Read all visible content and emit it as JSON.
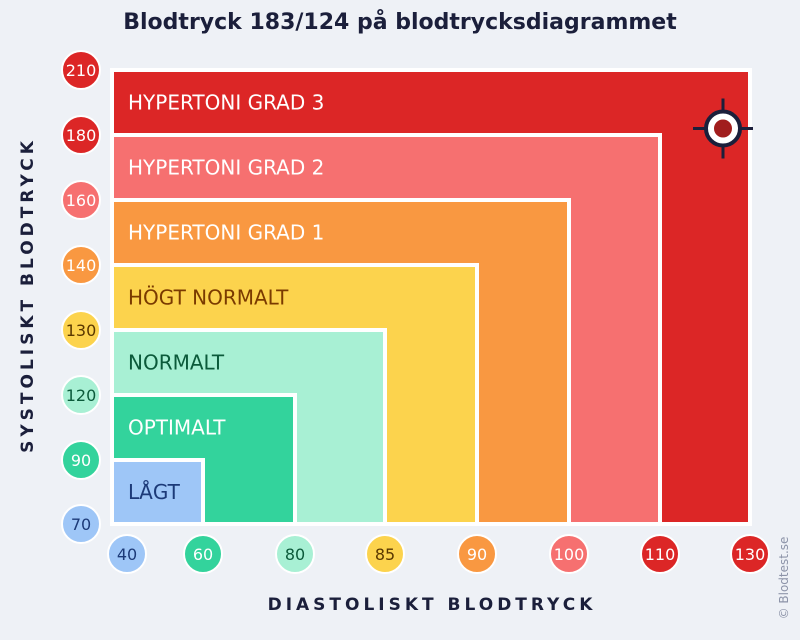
{
  "title": "Blodtryck 183/124 på blodtrycksdiagrammet",
  "watermark": "© Blodtest.se",
  "chart_data": {
    "type": "area",
    "xlabel": "DIASTOLISKT BLODTRYCK",
    "ylabel": "SYSTOLISKT BLODTRYCK",
    "x_ticks": [
      {
        "value": "40",
        "color": "#9ec6f7",
        "text_color": "#1c3a78"
      },
      {
        "value": "60",
        "color": "#33d39c",
        "text_color": "#ffffff"
      },
      {
        "value": "80",
        "color": "#a8f0d4",
        "text_color": "#0b5a3a"
      },
      {
        "value": "85",
        "color": "#fcd34d",
        "text_color": "#5a3800"
      },
      {
        "value": "90",
        "color": "#f99841",
        "text_color": "#ffffff"
      },
      {
        "value": "100",
        "color": "#f67070",
        "text_color": "#ffffff"
      },
      {
        "value": "110",
        "color": "#dc2626",
        "text_color": "#ffffff"
      },
      {
        "value": "130",
        "color": "#dc2626",
        "text_color": "#ffffff"
      }
    ],
    "y_ticks": [
      {
        "value": "70",
        "color": "#9ec6f7",
        "text_color": "#1c3a78"
      },
      {
        "value": "90",
        "color": "#33d39c",
        "text_color": "#ffffff"
      },
      {
        "value": "120",
        "color": "#a8f0d4",
        "text_color": "#0b5a3a"
      },
      {
        "value": "130",
        "color": "#fcd34d",
        "text_color": "#5a3800"
      },
      {
        "value": "140",
        "color": "#f99841",
        "text_color": "#ffffff"
      },
      {
        "value": "160",
        "color": "#f67070",
        "text_color": "#ffffff"
      },
      {
        "value": "180",
        "color": "#dc2626",
        "text_color": "#ffffff"
      },
      {
        "value": "210",
        "color": "#dc2626",
        "text_color": "#ffffff"
      }
    ],
    "zones": [
      {
        "label": "HYPERTONI GRAD 3",
        "systolic_max": 210,
        "diastolic_max": 130,
        "color": "#dc2626",
        "text_color": "#ffffff"
      },
      {
        "label": "HYPERTONI GRAD 2",
        "systolic_max": 180,
        "diastolic_max": 110,
        "color": "#f67070",
        "text_color": "#ffffff"
      },
      {
        "label": "HYPERTONI GRAD 1",
        "systolic_max": 160,
        "diastolic_max": 100,
        "color": "#f99841",
        "text_color": "#ffffff"
      },
      {
        "label": "HÖGT NORMALT",
        "systolic_max": 140,
        "diastolic_max": 90,
        "color": "#fcd34d",
        "text_color": "#7a3a00"
      },
      {
        "label": "NORMALT",
        "systolic_max": 130,
        "diastolic_max": 85,
        "color": "#a8f0d4",
        "text_color": "#0b5a3a"
      },
      {
        "label": "OPTIMALT",
        "systolic_max": 120,
        "diastolic_max": 80,
        "color": "#33d39c",
        "text_color": "#ffffff"
      },
      {
        "label": "LÅGT",
        "systolic_max": 90,
        "diastolic_max": 60,
        "color": "#9ec6f7",
        "text_color": "#1c3a78"
      }
    ],
    "marker": {
      "systolic": 183,
      "diastolic": 124,
      "color": "#a11d1d"
    }
  }
}
